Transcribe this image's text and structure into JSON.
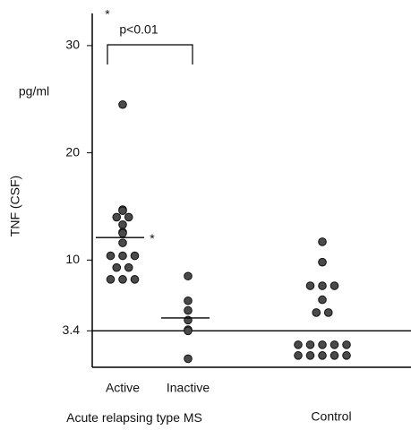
{
  "chart_data": {
    "type": "strip",
    "y_label": "TNF (CSF)",
    "y_unit": "pg/ml",
    "ylim": [
      0,
      33
    ],
    "yticks": [
      3.4,
      10,
      20,
      30
    ],
    "reference_line": 3.4,
    "color": "#4a4a4a",
    "groups": [
      {
        "label": "Active",
        "values": [
          24.5,
          14.7,
          14.6,
          14.0,
          14.0,
          13.3,
          12.6,
          12.5,
          11.6,
          10.4,
          10.4,
          10.4,
          9.3,
          9.3,
          8.2,
          8.2,
          8.2
        ],
        "mean": 12.1
      },
      {
        "label": "Inactive",
        "values": [
          8.5,
          6.2,
          5.3,
          4.4,
          3.5,
          3.4,
          0.8
        ],
        "mean": 4.6
      },
      {
        "label": "Control",
        "values": [
          11.7,
          9.8,
          7.6,
          7.6,
          7.6,
          6.3,
          5.1,
          5.1,
          2.1,
          2.1,
          2.1,
          2.1,
          2.1,
          1.1,
          1.1,
          1.1,
          1.1,
          1.1
        ]
      }
    ],
    "group_caption": "Acute relapsing type MS",
    "significance": {
      "label": "p<0.01",
      "marker": "*"
    },
    "mean_marker": "*"
  }
}
